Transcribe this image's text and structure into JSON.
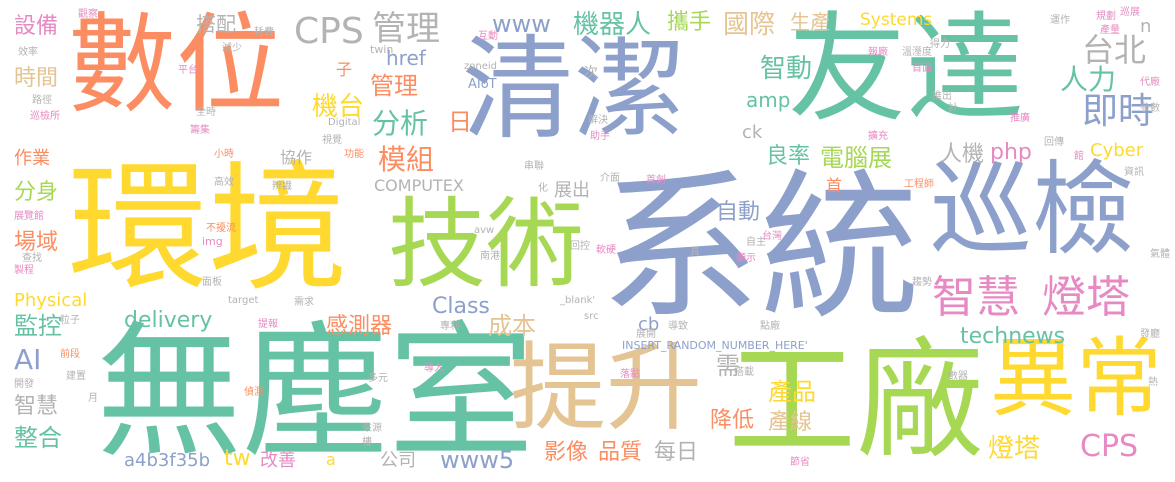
{
  "palette": {
    "green": "#66c2a5",
    "orange": "#fc8d62",
    "blue": "#8da0cb",
    "pink": "#e78ac3",
    "lime": "#a6d854",
    "yellow": "#ffd92f",
    "tan": "#e5c494",
    "gray": "#b3b3b3"
  },
  "words": {
    "w_shuwei": "數位",
    "w_qingjie": "清潔",
    "w_youda": "友達",
    "w_huanjing": "環境",
    "w_xitong": "系統",
    "w_xunjian": "巡檢",
    "w_jishu": "技術",
    "w_wuchenshi": "無塵室",
    "w_tisheng": "提升",
    "w_gongchang": "工廠",
    "w_yichang": "異常",
    "w_zhihui_big": "智慧",
    "w_dengta_big": "燈塔",
    "w_cps_top": "CPS",
    "w_guanli_top": "管理",
    "w_www_top": "www",
    "w_jiqiren": "機器人",
    "w_xieshou": "攜手",
    "w_guoji": "國際",
    "w_shengchan": "生產",
    "w_systems": "Systems",
    "w_taibei": "台北",
    "w_renli": "人力",
    "w_jishi": "即時",
    "w_zhidong": "智動",
    "w_amp": "amp",
    "w_jitai": "機台",
    "w_guanli2": "管理",
    "w_fenxi": "分析",
    "w_ri": "日",
    "w_href": "href",
    "w_mozu": "模組",
    "w_lianglv": "良率",
    "w_diannaozhan": "電腦展",
    "w_renji": "人機",
    "w_php": "php",
    "w_cyber": "Cyber",
    "w_shebei": "設備",
    "w_shijian": "時間",
    "w_dapei": "搭配",
    "w_zuoye": "作業",
    "w_xiezuo": "協作",
    "w_fenshen": "分身",
    "w_computex": "COMPUTEX",
    "w_zhanchu": "展出",
    "w_zidong": "自動",
    "w_changyu": "場域",
    "w_physical": "Physical",
    "w_delivery": "delivery",
    "w_class": "Class",
    "w_chengben": "成本",
    "w_jiankong": "監控",
    "w_ganceqi": "感測器",
    "w_technews": "technews",
    "w_ai": "AI",
    "w_zhihui2": "智慧",
    "w_zhenghe": "整合",
    "w_a4b3f35b": "a4b3f35b",
    "w_tw": "tw",
    "w_gaishan": "改善",
    "w_a": "a",
    "w_gongsi": "公司",
    "w_www5": "www5",
    "w_yingxiang": "影像",
    "w_pinzhi": "品質",
    "w_meiri": "每日",
    "w_xu": "需",
    "w_jiangdi": "降低",
    "w_chanpin": "產品",
    "w_chanxian": "產線",
    "w_dengta2": "燈塔",
    "w_cps_bottom": "CPS",
    "w_cb": "cb",
    "w_insert": "INSERT_RANDOM_NUMBER_HERE'",
    "w_ck": "ck",
    "w_shou": "首",
    "w_n": "n",
    "w_zi": "子",
    "w_ci": "次",
    "w_aiot": "AIoT",
    "w_twin": "twin",
    "w_zoneid": "zoneid",
    "w_digital": "Digital",
    "w_img": "img",
    "w_target": "target",
    "w_blank": "_blank'",
    "w_src": "src",
    "w_avw": "avw",
    "w_guancha": "觀察",
    "w_haofei": "耗費",
    "w_xiaolv": "效率",
    "w_jianshao": "減少",
    "w_pingtai": "平台",
    "w_lujing": "路徑",
    "w_xunjiansuo": "巡檢所",
    "w_quanshi": "全時",
    "w_chouji": "籌集",
    "w_shijue": "視覺",
    "w_xiaoshi": "小時",
    "w_gongneng": "功能",
    "w_gaoxiao": "高效",
    "w_bianshi": "辨識",
    "w_zhanlanguan": "展覽館",
    "w_buduanliu": "不擾流",
    "w_chazhao": "查找",
    "w_zhicheng": "製程",
    "w_mianban": "面板",
    "w_lizi": "粒子",
    "w_tijiao": "提報",
    "w_qianduan": "前段",
    "w_kaifa": "開發",
    "w_jianzhi": "建置",
    "w_yue": "月",
    "w_zhence": "偵測",
    "w_duoyuan": "多元",
    "w_xuqiu": "需求",
    "w_zhuanli": "專利",
    "w_laiyuan": "來源",
    "w_lou": "樓",
    "w_hudong": "互動",
    "w_daoru": "導入",
    "w_jiejue": "解決",
    "w_zhushou": "助手",
    "w_chuanlian": "串聯",
    "w_hua": "化",
    "w_jiemian": "介面",
    "w_shouchuang": "首創",
    "w_nangang": "南港",
    "w_huikong": "回控",
    "w_ruanying": "軟硬",
    "w_ju": "具",
    "w_zizhu": "自主",
    "w_taiwan": "台灣",
    "w_xianshi": "顯示",
    "w_zhankai": "展開",
    "w_daozhi": "導致",
    "w_luodian": "落點",
    "w_dianchang": "點廠",
    "w_dashiji": "搭載",
    "w_jiesheng": "節省",
    "w_xiangzhan": "巡展",
    "w_yunzuo": "運作",
    "w_gaopei": "得力",
    "w_baochang": "報廠",
    "w_wenshidu": "溫溼度",
    "w_shouhua": "首面",
    "w_tuichu": "推出",
    "w_ji": "計",
    "w_tuiguang": "推廣",
    "w_guicheng": "規劃",
    "w_jiliang": "產量",
    "w_daigou": "代廠",
    "w_canshu": "參數",
    "w_huichuan": "回傳",
    "w_guan": "館",
    "w_zixun": "資訊",
    "w_kuochong": "擴充",
    "w_gongchengshi": "工程師",
    "w_qiti": "氣體",
    "w_qushi": "趨勢",
    "w_fabu": "發廳",
    "w_re": "熱",
    "w_shuju": "數器"
  }
}
